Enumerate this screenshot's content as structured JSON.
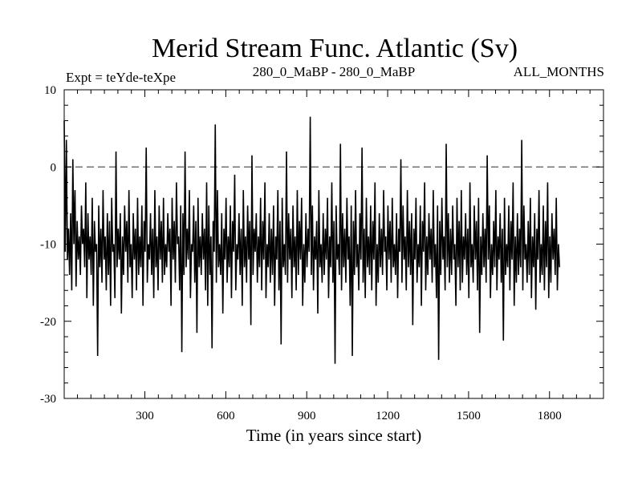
{
  "chart_data": {
    "type": "line",
    "title": "Merid Stream Func. Atlantic (Sv)",
    "subtitle_left": "Expt = teYde-teXpe",
    "subtitle_center": "280_0_MaBP - 280_0_MaBP",
    "subtitle_right": "ALL_MONTHS",
    "xlabel": "Time (in years since start)",
    "ylabel": "",
    "xlim": [
      1,
      2000
    ],
    "ylim": [
      -30,
      10
    ],
    "x_ticks": [
      300,
      600,
      900,
      1200,
      1500,
      1800
    ],
    "y_ticks": [
      10,
      0,
      -10,
      -20,
      -30
    ],
    "reference_line": 0,
    "grid": false,
    "legend": "none",
    "line_color": "#000000",
    "series": [
      {
        "x_start": 1,
        "x_step": 4,
        "values": [
          6.0,
          -11.0,
          3.5,
          -12.0,
          -8.0,
          -14.0,
          -6.0,
          -16.0,
          1.0,
          -10.0,
          -3.0,
          -15.5,
          -7.0,
          -12.0,
          -9.0,
          -14.0,
          -5.0,
          -10.0,
          -8.0,
          -13.0,
          -2.0,
          -17.0,
          -6.0,
          -12.0,
          -9.0,
          -14.0,
          -4.0,
          -18.0,
          -7.0,
          -11.0,
          -10.0,
          -24.5,
          -5.0,
          -13.0,
          -8.0,
          -15.0,
          -3.0,
          -12.0,
          -9.0,
          -16.0,
          -6.0,
          -14.0,
          -7.0,
          -18.0,
          -4.0,
          -11.0,
          -10.0,
          -17.0,
          2.0,
          -13.0,
          -8.0,
          -12.0,
          -6.0,
          -19.0,
          -9.0,
          -14.0,
          -5.0,
          -11.0,
          -7.0,
          -15.0,
          -3.0,
          -13.0,
          -10.0,
          -17.0,
          -6.0,
          -12.0,
          -8.0,
          -16.0,
          -4.0,
          -14.0,
          -9.0,
          -13.0,
          -5.0,
          -18.0,
          -7.0,
          -11.0,
          2.5,
          -15.0,
          -10.0,
          -12.0,
          -6.0,
          -14.0,
          -8.0,
          -17.0,
          -3.0,
          -13.0,
          -9.0,
          -16.0,
          -5.0,
          -12.0,
          -7.0,
          -15.0,
          -4.0,
          -14.0,
          -10.0,
          -13.0,
          -6.0,
          -11.0,
          -8.0,
          -18.0,
          -4.0,
          -12.0,
          -7.0,
          -15.0,
          -2.0,
          -10.0,
          -9.0,
          -16.0,
          -5.0,
          -24.0,
          -6.0,
          -14.0,
          2.0,
          -13.0,
          -8.0,
          -12.0,
          -3.0,
          -17.0,
          -10.0,
          -11.0,
          -5.0,
          -15.0,
          -7.0,
          -21.5,
          -4.0,
          -13.0,
          -9.0,
          -14.0,
          -6.0,
          -12.0,
          -8.0,
          -16.0,
          -2.0,
          -18.0,
          -5.0,
          -14.0,
          -9.0,
          -23.5,
          -7.0,
          -11.0,
          5.5,
          -15.0,
          -3.0,
          -13.0,
          -10.0,
          -14.0,
          -6.0,
          -19.0,
          -8.0,
          -12.0,
          -4.0,
          -15.0,
          -9.0,
          -13.0,
          -5.0,
          -17.0,
          -7.0,
          -11.0,
          -1.0,
          -16.0,
          -10.0,
          -12.0,
          -6.0,
          -14.0,
          -8.0,
          -18.0,
          -3.0,
          -13.0,
          -9.0,
          -15.0,
          -5.0,
          -12.0,
          -7.0,
          -20.5,
          1.5,
          -14.0,
          -8.0,
          -11.0,
          -6.0,
          -15.0,
          -9.0,
          -13.0,
          -4.0,
          -16.0,
          -7.0,
          -12.0,
          -2.0,
          -17.0,
          -10.0,
          -13.0,
          -6.0,
          -15.0,
          -8.0,
          -14.0,
          -5.0,
          -18.0,
          -9.0,
          -12.0,
          -3.0,
          -16.0,
          -7.0,
          -23.0,
          -4.0,
          -13.0,
          -10.0,
          -14.0,
          2.0,
          -15.0,
          -6.0,
          -12.0,
          -8.0,
          -17.0,
          -5.0,
          -13.0,
          -9.0,
          -16.0,
          -3.0,
          -14.0,
          -7.0,
          -12.0,
          -4.0,
          -18.0,
          -10.0,
          -15.0,
          -6.0,
          -13.0,
          -8.0,
          -11.0,
          6.5,
          -14.0,
          -5.0,
          -16.0,
          -9.0,
          -12.0,
          -7.0,
          -19.0,
          -3.0,
          -13.0,
          -10.0,
          -15.0,
          -6.0,
          -14.0,
          -8.0,
          -12.0,
          -4.0,
          -17.0,
          -9.0,
          -13.0,
          -2.0,
          -15.0,
          -7.0,
          -25.5,
          -5.0,
          -12.0,
          -10.0,
          -14.0,
          3.0,
          -16.0,
          -6.0,
          -13.0,
          -8.0,
          -15.0,
          -4.0,
          -12.0,
          -9.0,
          -18.0,
          -5.0,
          -24.5,
          -7.0,
          -14.0,
          -3.0,
          -13.0,
          -10.0,
          -16.0,
          -6.0,
          -12.0,
          2.5,
          -15.0,
          -8.0,
          -17.0,
          -4.0,
          -13.0,
          -9.0,
          -14.0,
          -5.0,
          -16.0,
          -7.0,
          -12.0,
          -2.0,
          -18.0,
          -10.0,
          -15.0,
          -6.0,
          -13.0,
          -8.0,
          -14.0,
          -3.0,
          -11.0,
          -9.0,
          -16.0,
          -5.0,
          -12.0,
          -7.0,
          -15.0,
          -4.0,
          -13.0,
          -10.0,
          -14.0,
          -6.0,
          -17.0,
          -8.0,
          -11.0,
          1.0,
          -15.0,
          -5.0,
          -12.0,
          -9.0,
          -16.0,
          -3.0,
          -13.0,
          -7.0,
          -14.0,
          -6.0,
          -20.5,
          -8.0,
          -12.0,
          -4.0,
          -15.0,
          -10.0,
          -13.0,
          -5.0,
          -18.0,
          -7.0,
          -11.0,
          -2.0,
          -16.0,
          -9.0,
          -14.0,
          -6.0,
          -12.0,
          -8.0,
          -15.0,
          -3.0,
          -13.0,
          -10.0,
          -17.0,
          -5.0,
          -25.0,
          -7.0,
          -14.0,
          -4.0,
          -12.0,
          -9.0,
          -16.0,
          3.0,
          -13.0,
          -6.0,
          -15.0,
          -8.0,
          -14.0,
          -5.0,
          -12.0,
          -10.0,
          -18.0,
          -4.0,
          -13.0,
          -7.0,
          -16.0,
          -3.0,
          -15.0,
          -9.0,
          -12.0,
          -6.0,
          -14.0,
          -8.0,
          -17.0,
          -2.0,
          -13.0,
          -10.0,
          -15.0,
          -5.0,
          -12.0,
          -7.0,
          -16.0,
          -4.0,
          -21.5,
          -9.0,
          -14.0,
          -6.0,
          -13.0,
          -8.0,
          -15.0,
          1.5,
          -12.0,
          -5.0,
          -17.0,
          -10.0,
          -14.0,
          -7.0,
          -13.0,
          -3.0,
          -16.0,
          -9.0,
          -12.0,
          -6.0,
          -15.0,
          -8.0,
          -22.5,
          -4.0,
          -14.0,
          -10.0,
          -13.0,
          -5.0,
          -16.0,
          -7.0,
          -12.0,
          -2.0,
          -18.0,
          -9.0,
          -15.0,
          -6.0,
          -14.0,
          -8.0,
          -13.0,
          3.5,
          -16.0,
          -5.0,
          -12.0,
          -10.0,
          -15.0,
          -7.0,
          -14.0,
          -4.0,
          -17.0,
          -9.0,
          -13.0,
          -6.0,
          -18.5,
          -8.0,
          -12.0,
          -3.0,
          -15.0,
          -10.0,
          -14.0,
          -5.0,
          -16.0,
          -7.0,
          -13.0,
          -2.0,
          -17.0,
          -9.0,
          -15.0,
          -6.0,
          -12.0,
          -8.0,
          -14.0,
          -4.0,
          -16.0,
          -10.0,
          -13.0
        ]
      }
    ]
  }
}
